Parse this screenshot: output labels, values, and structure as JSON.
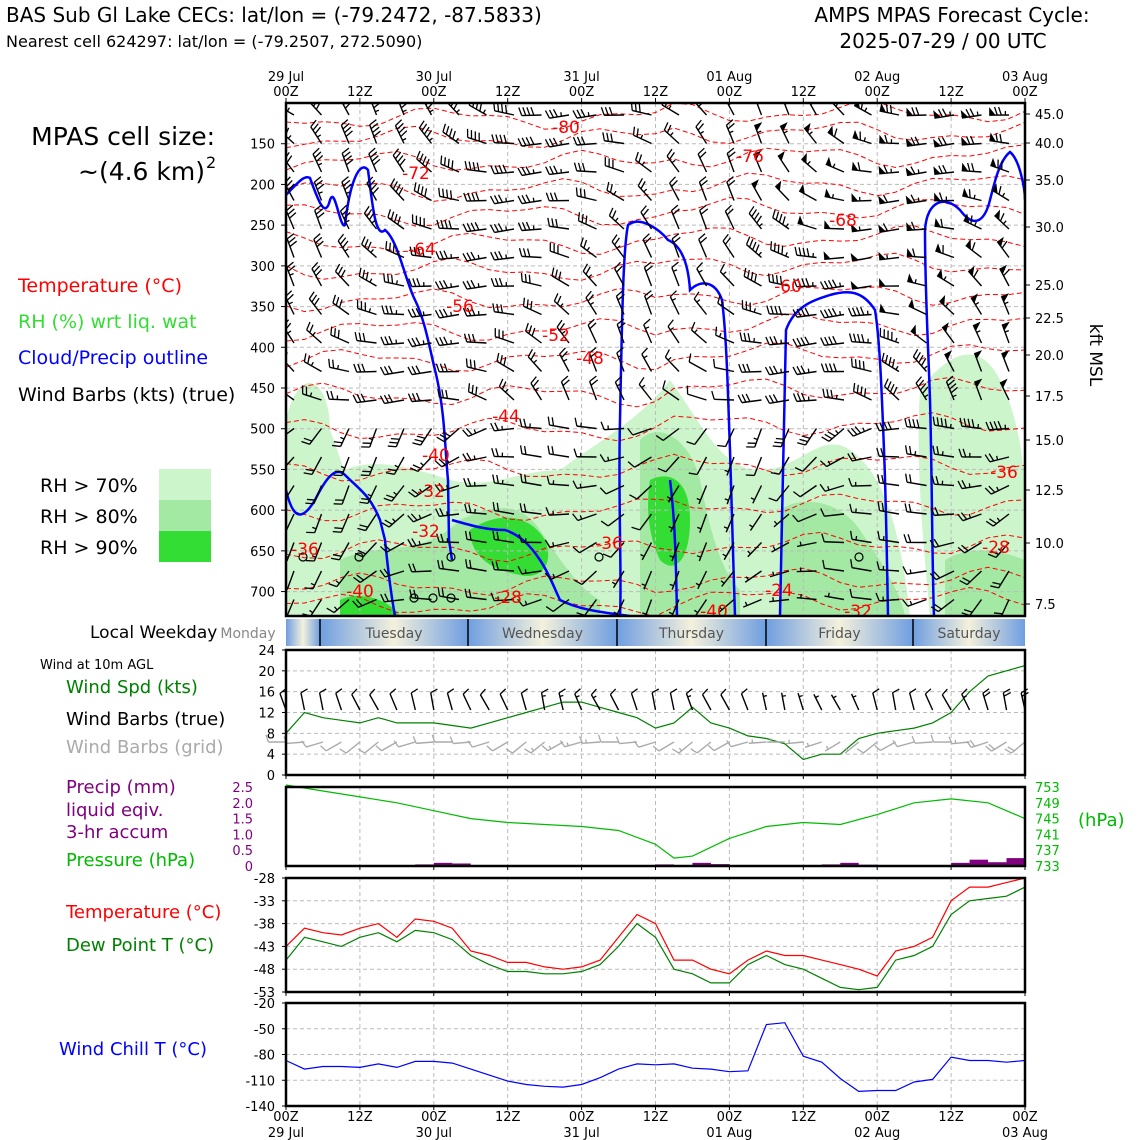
{
  "header": {
    "station_line": "BAS Sub Gl Lake CECs: lat/lon = (-79.2472, -87.5833)",
    "cell_line": "Nearest cell 624297: lat/lon = (-79.2507, 272.5090)",
    "forecast_line1": "AMPS MPAS Forecast Cycle:",
    "forecast_line2": "2025-07-29 / 00 UTC",
    "cell_size_line1": "MPAS cell size:",
    "cell_size_line2": "~(4.6 km)",
    "cell_size_sup": "2"
  },
  "colors": {
    "temperature": "#ff0000",
    "rh": "#33dd33",
    "cloud": "#0000ff",
    "wind": "#000000",
    "wind_grid": "#aaaaaa",
    "speed": "#008000",
    "precip": "#800080",
    "pressure": "#00bb00",
    "dewpoint": "#008000",
    "windchill": "#0000ff",
    "rh70": "#ccf5cc",
    "rh80": "#a3e8a3",
    "rh90": "#33dd33"
  },
  "legend": {
    "items": [
      {
        "text": "Temperature (°C)",
        "color": "#ff0000"
      },
      {
        "text": "RH (%) wrt liq. wat",
        "color": "#33dd33"
      },
      {
        "text": "Cloud/Precip outline",
        "color": "#0000ff"
      },
      {
        "text": "Wind Barbs (kts) (true)",
        "color": "#000000"
      }
    ],
    "rh_levels": [
      {
        "text": "RH > 70%",
        "color": "#ccf5cc"
      },
      {
        "text": "RH > 80%",
        "color": "#a3e8a3"
      },
      {
        "text": "RH > 90%",
        "color": "#33dd33"
      }
    ]
  },
  "time_axis": {
    "top_ticks": [
      "29 Jul\n00Z",
      "12Z",
      "30 Jul\n00Z",
      "12Z",
      "31 Jul\n00Z",
      "12Z",
      "01 Aug\n00Z",
      "12Z",
      "02 Aug\n00Z",
      "12Z",
      "03 Aug\n00Z"
    ],
    "bottom_ticks": [
      "00Z\n29 Jul",
      "12Z",
      "00Z\n30 Jul",
      "12Z",
      "00Z\n31 Jul",
      "12Z",
      "00Z\n01 Aug",
      "12Z",
      "00Z\n02 Aug",
      "12Z",
      "00Z\n03 Aug"
    ]
  },
  "weekday": {
    "label": "Local Weekday",
    "days": [
      "Monday",
      "Tuesday",
      "Wednesday",
      "Thursday",
      "Friday",
      "Saturday"
    ]
  },
  "chart_data": [
    {
      "type": "heatmap",
      "subtype": "time-height cross section",
      "y_left_ticks_hpa": [
        150,
        200,
        250,
        300,
        350,
        400,
        450,
        500,
        550,
        600,
        650,
        700
      ],
      "y_right_ticks_kft": [
        "45.0",
        "40.0",
        "35.0",
        "30.0",
        "25.0",
        "22.5",
        "20.0",
        "17.5",
        "15.0",
        "12.5",
        "10.0",
        "7.5"
      ],
      "y_right_label": "kft MSL",
      "ylim_hpa": [
        100,
        730
      ],
      "x_hours": [
        0,
        120
      ],
      "temperature_labels": [
        "-80",
        "-76",
        "-72",
        "-68",
        "-64",
        "-60",
        "-56",
        "-52",
        "-48",
        "-44",
        "-40",
        "-36",
        "-32",
        "-32",
        "-36",
        "-28",
        "-24",
        "-40",
        "-36",
        "-40",
        "-32",
        "-28"
      ]
    },
    {
      "type": "line",
      "title": "Wind at 10m AGL",
      "labels": [
        "Wind Spd (kts)",
        "Wind Barbs (true)",
        "Wind Barbs (grid)"
      ],
      "ylim": [
        0,
        24
      ],
      "y_ticks": [
        "0",
        "4",
        "8",
        "12",
        "16",
        "20",
        "24"
      ],
      "series": [
        {
          "name": "Wind Spd (kts)",
          "x": [
            0,
            3,
            6,
            9,
            12,
            15,
            18,
            21,
            24,
            27,
            30,
            33,
            36,
            39,
            42,
            45,
            48,
            51,
            54,
            57,
            60,
            63,
            66,
            69,
            72,
            75,
            78,
            81,
            84,
            87,
            90,
            93,
            96,
            99,
            102,
            105,
            108,
            111,
            114,
            117,
            120
          ],
          "values": [
            8,
            12,
            11,
            10.5,
            10,
            11,
            10,
            10,
            10,
            9.5,
            9,
            10,
            11,
            12,
            13,
            14,
            14,
            13,
            12,
            11,
            9,
            10,
            13,
            10,
            9,
            7.5,
            7,
            6,
            3,
            4,
            4,
            7,
            8,
            8.5,
            9,
            10,
            12,
            16,
            19,
            20,
            21
          ]
        }
      ]
    },
    {
      "type": "bar",
      "labels": [
        "Precip (mm)",
        "liquid eqiv.",
        "3-hr accum",
        "Pressure (hPa)"
      ],
      "precip_ylim": [
        0,
        2.5
      ],
      "precip_ticks": [
        "0",
        "0.5",
        "1.0",
        "1.5",
        "2.0",
        "2.5"
      ],
      "pressure_ticks": [
        "733",
        "737",
        "741",
        "745",
        "749",
        "753"
      ],
      "pressure_label": "(hPa)",
      "pressure_ylim": [
        733,
        753
      ],
      "series": [
        {
          "name": "Precip (mm)",
          "x": [
            19.5,
            22.5,
            25.5,
            28.5,
            61.5,
            64.5,
            67.5,
            70.5,
            85.5,
            88.5,
            91.5,
            94.5,
            109.5,
            112.5,
            115.5,
            118.5
          ],
          "values": [
            0.02,
            0.05,
            0.1,
            0.08,
            0.05,
            0.02,
            0.1,
            0.06,
            0.03,
            0.05,
            0.1,
            0.04,
            0.1,
            0.2,
            0.12,
            0.25
          ]
        },
        {
          "name": "Pressure (hPa)",
          "x": [
            0,
            6,
            12,
            18,
            24,
            30,
            36,
            42,
            48,
            54,
            60,
            63,
            66,
            72,
            78,
            84,
            90,
            96,
            102,
            108,
            114,
            120
          ],
          "values": [
            753.5,
            752,
            750.5,
            749,
            747,
            745,
            744,
            743.5,
            743,
            742,
            738.5,
            735,
            735.5,
            740,
            743,
            744,
            743.5,
            746,
            749,
            750,
            749,
            745
          ]
        }
      ]
    },
    {
      "type": "line",
      "labels": [
        "Temperature (°C)",
        "Dew Point T (°C)"
      ],
      "ylim": [
        -53,
        -28
      ],
      "y_ticks": [
        "-28",
        "-33",
        "-38",
        "-43",
        "-48",
        "-53"
      ],
      "series": [
        {
          "name": "Temperature (°C)",
          "x": [
            0,
            3,
            6,
            9,
            12,
            15,
            18,
            21,
            24,
            27,
            30,
            33,
            36,
            39,
            42,
            45,
            48,
            51,
            54,
            57,
            60,
            63,
            66,
            69,
            72,
            75,
            78,
            81,
            84,
            87,
            90,
            93,
            96,
            99,
            102,
            105,
            108,
            111,
            114,
            117,
            120
          ],
          "values": [
            -43,
            -39,
            -40,
            -40.5,
            -39,
            -38,
            -41,
            -37,
            -37.5,
            -39,
            -44,
            -45,
            -46.5,
            -46.5,
            -47.5,
            -48,
            -47.5,
            -46,
            -41,
            -36,
            -38,
            -46,
            -46,
            -48,
            -49,
            -46,
            -44,
            -45,
            -45,
            -46,
            -47,
            -48,
            -49.5,
            -44,
            -43,
            -41,
            -33,
            -30,
            -30,
            -29,
            -28
          ]
        },
        {
          "name": "Dew Point T (°C)",
          "x": [
            0,
            3,
            6,
            9,
            12,
            15,
            18,
            21,
            24,
            27,
            30,
            33,
            36,
            39,
            42,
            45,
            48,
            51,
            54,
            57,
            60,
            63,
            66,
            69,
            72,
            75,
            78,
            81,
            84,
            87,
            90,
            93,
            96,
            99,
            102,
            105,
            108,
            111,
            114,
            117,
            120
          ],
          "values": [
            -46,
            -41,
            -42,
            -43,
            -41,
            -40,
            -42,
            -39.5,
            -40,
            -41.5,
            -45,
            -47,
            -48.5,
            -48.5,
            -49,
            -49,
            -48.5,
            -47,
            -43,
            -38,
            -41,
            -48,
            -49,
            -51,
            -51,
            -47,
            -45,
            -47,
            -48,
            -50,
            -52,
            -52.5,
            -52,
            -46,
            -45,
            -43,
            -36,
            -33,
            -32.5,
            -32,
            -30
          ]
        }
      ]
    },
    {
      "type": "line",
      "labels": [
        "Wind Chill T (°C)"
      ],
      "ylim": [
        -140,
        -20
      ],
      "y_ticks": [
        "-20",
        "-50",
        "-80",
        "-110",
        "-140"
      ],
      "series": [
        {
          "name": "Wind Chill T (°C)",
          "x": [
            0,
            3,
            6,
            9,
            12,
            15,
            18,
            21,
            24,
            27,
            30,
            33,
            36,
            39,
            42,
            45,
            48,
            51,
            54,
            57,
            60,
            63,
            66,
            69,
            72,
            75,
            78,
            81,
            84,
            87,
            90,
            93,
            96,
            99,
            102,
            105,
            108,
            111,
            114,
            117,
            120
          ],
          "values": [
            -87,
            -97,
            -94,
            -94,
            -95,
            -91,
            -95,
            -88,
            -88,
            -90,
            -97,
            -104,
            -111,
            -115,
            -117,
            -118,
            -115,
            -107,
            -97,
            -91,
            -92,
            -91,
            -96,
            -97,
            -100,
            -99,
            -45,
            -43,
            -82,
            -89,
            -108,
            -123,
            -122,
            -122,
            -112,
            -109,
            -83,
            -87,
            -87,
            -89,
            -87
          ]
        }
      ]
    }
  ]
}
